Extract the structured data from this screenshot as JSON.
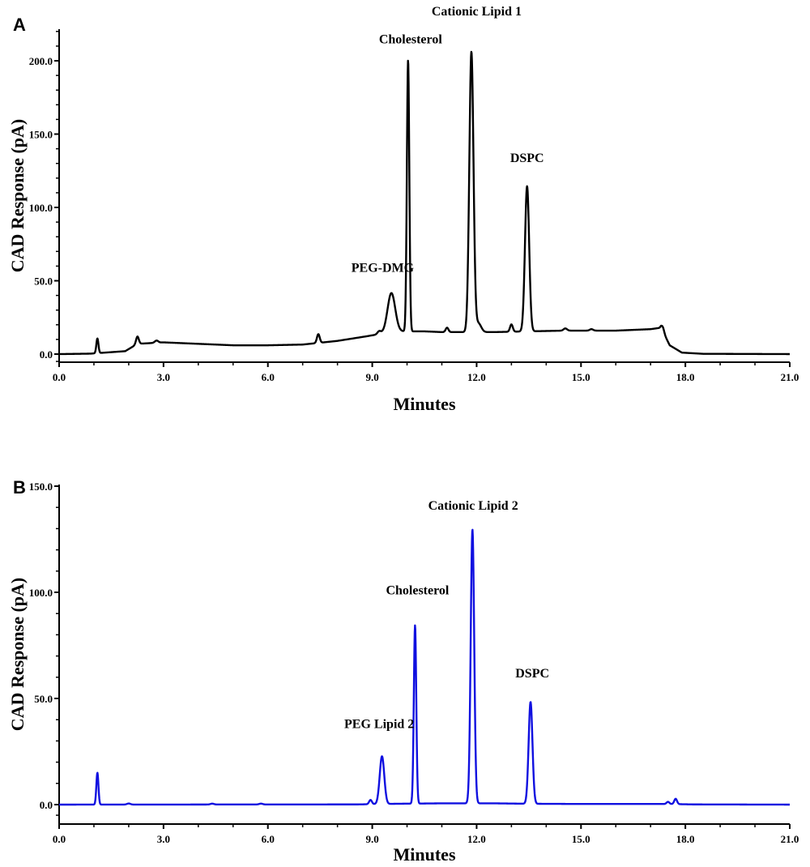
{
  "chart_data": [
    {
      "panel": "A",
      "type": "line",
      "xlabel": "Minutes",
      "ylabel": "CAD Response (pA)",
      "xlim": [
        0,
        21
      ],
      "ylim": [
        -7,
        220
      ],
      "x_ticks": [
        "0.0",
        "3.0",
        "6.0",
        "9.0",
        "12.0",
        "15.0",
        "18.0",
        "21.0"
      ],
      "y_ticks": [
        "0.0",
        "50.0",
        "100.0",
        "150.0",
        "200.0"
      ],
      "color": "#000000",
      "baseline": [
        [
          0,
          0
        ],
        [
          0.9,
          0.3
        ],
        [
          1.9,
          2
        ],
        [
          2.25,
          7
        ],
        [
          3,
          8
        ],
        [
          4,
          7
        ],
        [
          5,
          6
        ],
        [
          6,
          6
        ],
        [
          7,
          6.5
        ],
        [
          8,
          9
        ],
        [
          8.8,
          12
        ],
        [
          9.3,
          14
        ],
        [
          9.9,
          15.5
        ],
        [
          10.5,
          15.5
        ],
        [
          11,
          15
        ],
        [
          12.5,
          15
        ],
        [
          13.5,
          15.5
        ],
        [
          14.5,
          16
        ],
        [
          16,
          16
        ],
        [
          17,
          17
        ],
        [
          17.3,
          18
        ],
        [
          17.55,
          6
        ],
        [
          17.9,
          1
        ],
        [
          18.5,
          0.2
        ],
        [
          21,
          0
        ]
      ],
      "peaks": [
        {
          "x": 1.1,
          "h": 10,
          "w": 0.03
        },
        {
          "x": 2.25,
          "h": 5,
          "w": 0.04
        },
        {
          "x": 2.8,
          "h": 1.5,
          "w": 0.05
        },
        {
          "x": 7.45,
          "h": 6,
          "w": 0.04
        },
        {
          "x": 9.2,
          "h": 2,
          "w": 0.05
        },
        {
          "x": 9.55,
          "h": 27,
          "w": 0.11
        },
        {
          "x": 10.03,
          "h": 185,
          "w": 0.035
        },
        {
          "x": 11.15,
          "h": 3,
          "w": 0.04
        },
        {
          "x": 11.85,
          "h": 191,
          "w": 0.06
        },
        {
          "x": 12.05,
          "h": 6,
          "w": 0.08
        },
        {
          "x": 13.0,
          "h": 5,
          "w": 0.04
        },
        {
          "x": 13.45,
          "h": 99,
          "w": 0.06
        },
        {
          "x": 14.55,
          "h": 1.5,
          "w": 0.05
        },
        {
          "x": 15.3,
          "h": 1,
          "w": 0.05
        },
        {
          "x": 17.35,
          "h": 3,
          "w": 0.04
        }
      ],
      "annotations": [
        {
          "text": "Cationic Lipid 1",
          "x": 12.0,
          "y": 231
        },
        {
          "text": "Cholesterol",
          "x": 10.1,
          "y": 212
        },
        {
          "text": "DSPC",
          "x": 13.45,
          "y": 131
        },
        {
          "text": "PEG-DMG",
          "x": 9.3,
          "y": 56
        }
      ]
    },
    {
      "panel": "B",
      "type": "line",
      "xlabel": "Minutes",
      "ylabel": "CAD Response (pA)",
      "xlim": [
        0,
        21
      ],
      "ylim": [
        -8,
        150
      ],
      "x_ticks": [
        "0.0",
        "3.0",
        "6.0",
        "9.0",
        "12.0",
        "15.0",
        "18.0",
        "21.0"
      ],
      "y_ticks": [
        "0.0",
        "50.0",
        "100.0",
        "150.0"
      ],
      "color": "#1010e0",
      "baseline": [
        [
          0,
          0
        ],
        [
          8.6,
          0.1
        ],
        [
          9.7,
          0.4
        ],
        [
          11,
          0.6
        ],
        [
          12.5,
          0.6
        ],
        [
          13.5,
          0.4
        ],
        [
          15,
          0.3
        ],
        [
          17.5,
          0.3
        ],
        [
          18.2,
          0.1
        ],
        [
          21,
          0
        ]
      ],
      "peaks": [
        {
          "x": 1.1,
          "h": 15,
          "w": 0.03
        },
        {
          "x": 2.0,
          "h": 0.5,
          "w": 0.05
        },
        {
          "x": 4.4,
          "h": 0.4,
          "w": 0.05
        },
        {
          "x": 5.8,
          "h": 0.4,
          "w": 0.05
        },
        {
          "x": 8.95,
          "h": 2,
          "w": 0.04
        },
        {
          "x": 9.28,
          "h": 22.5,
          "w": 0.065
        },
        {
          "x": 10.23,
          "h": 84,
          "w": 0.035
        },
        {
          "x": 11.88,
          "h": 129,
          "w": 0.05
        },
        {
          "x": 13.55,
          "h": 48,
          "w": 0.055
        },
        {
          "x": 17.5,
          "h": 1,
          "w": 0.04
        },
        {
          "x": 17.72,
          "h": 2.5,
          "w": 0.04
        }
      ],
      "annotations": [
        {
          "text": "Cationic Lipid 2",
          "x": 11.9,
          "y": 139
        },
        {
          "text": "Cholesterol",
          "x": 10.3,
          "y": 99
        },
        {
          "text": "DSPC",
          "x": 13.6,
          "y": 60
        },
        {
          "text": "PEG Lipid 2",
          "x": 9.2,
          "y": 36
        }
      ]
    }
  ]
}
